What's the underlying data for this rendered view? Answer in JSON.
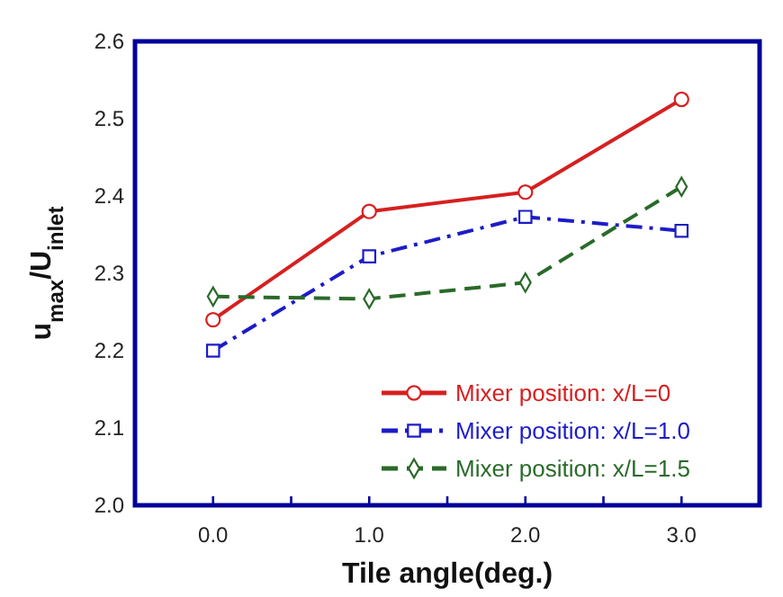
{
  "chart_data": {
    "type": "line",
    "xlabel": "Tile angle(deg.)",
    "ylabel": "u$_{max}$/U$_{inlet}$",
    "x": [
      0,
      1,
      2,
      3
    ],
    "series": [
      {
        "name": "Mixer position: x/L=0",
        "color": "#d62020",
        "values": [
          2.24,
          2.38,
          2.405,
          2.525
        ],
        "marker": "circle",
        "line_style": "solid"
      },
      {
        "name": "Mixer position: x/L=1.0",
        "color": "#1c1cc8",
        "values": [
          2.2,
          2.322,
          2.373,
          2.355
        ],
        "marker": "square",
        "line_style": "dashdot"
      },
      {
        "name": "Mixer position: x/L=1.5",
        "color": "#2a6a2a",
        "values": [
          2.27,
          2.267,
          2.288,
          2.412
        ],
        "marker": "diamond",
        "line_style": "dashed"
      }
    ],
    "xlim": [
      -0.5,
      3.5
    ],
    "xticks": [
      {
        "value": 0,
        "label": "0.0"
      },
      {
        "value": 0.5,
        "label": null
      },
      {
        "value": 1,
        "label": "1.0"
      },
      {
        "value": 1.5,
        "label": null
      },
      {
        "value": 2,
        "label": "2.0"
      },
      {
        "value": 2.5,
        "label": null
      },
      {
        "value": 3,
        "label": "3.0"
      }
    ],
    "ylim": [
      2.0,
      2.6
    ],
    "yticks": [
      {
        "value": 2.0,
        "label": "2.0"
      },
      2.1,
      2.2,
      2.3,
      2.4,
      2.5,
      2.6
    ],
    "grid": false,
    "legend": "bottom right"
  }
}
